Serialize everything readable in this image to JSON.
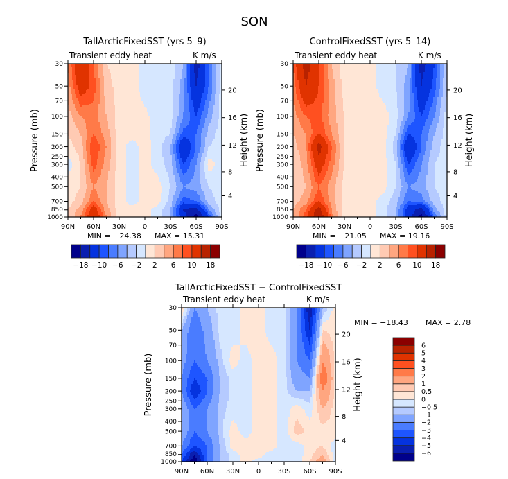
{
  "chart_data": {
    "type": "heatmap",
    "title": "SON",
    "colors": [
      "#00008b",
      "#0a1fb0",
      "#0533df",
      "#1e55ff",
      "#4a7cff",
      "#7fa4ff",
      "#b5caff",
      "#d6e7ff",
      "#ffe6d6",
      "#ffcab3",
      "#ffa680",
      "#ff7a48",
      "#ff5020",
      "#e03300",
      "#b82200",
      "#8b0000"
    ],
    "latitudes": [
      90,
      75,
      60,
      45,
      30,
      15,
      0,
      -15,
      -30,
      -45,
      -60,
      -75,
      -90
    ],
    "pressure_levels": [
      30,
      50,
      100,
      150,
      200,
      300,
      500,
      700,
      850,
      1000
    ],
    "x_ticks": [
      {
        "value": 90,
        "label": "90N"
      },
      {
        "value": 60,
        "label": "60N"
      },
      {
        "value": 30,
        "label": "30N"
      },
      {
        "value": 0,
        "label": "0"
      },
      {
        "value": -30,
        "label": "30S"
      },
      {
        "value": -60,
        "label": "60S"
      },
      {
        "value": -90,
        "label": "90S"
      }
    ],
    "p_ticks": [
      30,
      50,
      70,
      100,
      150,
      200,
      250,
      300,
      400,
      500,
      700,
      850,
      1000
    ],
    "p_tick_labels": [
      "30",
      "50",
      "70",
      "100",
      "150",
      "200",
      "250",
      "300",
      "400",
      "500",
      "700",
      "850",
      "1000"
    ],
    "z_ticks": [
      4,
      8,
      12,
      16,
      20
    ],
    "z_tick_labels": [
      "4",
      "8",
      "12",
      "16",
      "20"
    ],
    "ylabel": "Pressure (mb)",
    "ylabel_right": "Height (km)",
    "panels": [
      {
        "title": "TallArcticFixedSST (yrs 5–9)",
        "left_string": "Transient eddy heat",
        "right_string": "K m/s",
        "min_label": "MIN = −24.38",
        "max_label": "MAX =  15.31",
        "levels": [
          -18,
          -14,
          -10,
          -8,
          -6,
          -4,
          -2,
          0,
          2,
          4,
          6,
          8,
          10,
          14,
          18
        ],
        "colorbar_labels": [
          "−18",
          "−10",
          "−6",
          "−2",
          "2",
          "6",
          "10",
          "18"
        ],
        "colorbar_label_levels": [
          1,
          3,
          5,
          7,
          9,
          11,
          13,
          15
        ],
        "values": [
          [
            6,
            14,
            8,
            2,
            1,
            1,
            -1,
            -1,
            -1,
            -4,
            -16,
            -8,
            -1
          ],
          [
            5,
            12,
            9,
            3,
            1,
            1,
            -1,
            -1,
            -1,
            -5,
            -14,
            -8,
            -1
          ],
          [
            3,
            6,
            7,
            4,
            1,
            1,
            0.5,
            -1,
            -1,
            -6,
            -10,
            -5,
            -1
          ],
          [
            2,
            4,
            8,
            5,
            1,
            1,
            0.5,
            -1,
            -2,
            -9,
            -8,
            -3,
            -1
          ],
          [
            1,
            3,
            10,
            6,
            1,
            -1,
            1,
            -1,
            -4,
            -14,
            -8,
            -2,
            -1
          ],
          [
            -1,
            2,
            9,
            5,
            1,
            -1,
            1,
            -1,
            -3,
            -10,
            -6,
            1,
            -1
          ],
          [
            1,
            2,
            6,
            4,
            1,
            -1,
            1,
            1,
            -2,
            -6,
            -5,
            -2,
            -1
          ],
          [
            1,
            3,
            8,
            4,
            1,
            -1,
            1,
            1,
            -3,
            -9,
            -8,
            -3,
            -1
          ],
          [
            2,
            5,
            12,
            5,
            1,
            1,
            1,
            -1,
            -4,
            -14,
            -16,
            -6,
            -1
          ],
          [
            2,
            6,
            14,
            6,
            1,
            1,
            1,
            -1,
            -4,
            -12,
            -20,
            -10,
            -1
          ]
        ]
      },
      {
        "title": "ControlFixedSST (yrs 5–14)",
        "left_string": "Transient eddy heat",
        "right_string": "K m/s",
        "min_label": "MIN = −21.05",
        "max_label": "MAX =  19.16",
        "levels": [
          -18,
          -14,
          -10,
          -8,
          -6,
          -4,
          -2,
          0,
          2,
          4,
          6,
          8,
          10,
          14,
          18
        ],
        "colorbar_labels": [
          "−18",
          "−10",
          "−6",
          "−2",
          "2",
          "6",
          "10",
          "18"
        ],
        "colorbar_label_levels": [
          1,
          3,
          5,
          7,
          9,
          11,
          13,
          15
        ],
        "values": [
          [
            8,
            16,
            10,
            4,
            1,
            1,
            1,
            -1,
            -2,
            -4,
            -16,
            -10,
            -2
          ],
          [
            7,
            14,
            10,
            5,
            1,
            1,
            1,
            -1,
            -2,
            -5,
            -14,
            -9,
            -2
          ],
          [
            5,
            8,
            9,
            5,
            2,
            1,
            1,
            1,
            -1,
            -6,
            -10,
            -6,
            -1
          ],
          [
            4,
            6,
            10,
            6,
            2,
            1,
            1,
            1,
            -2,
            -10,
            -8,
            -4,
            -1
          ],
          [
            3,
            6,
            16,
            8,
            2,
            1,
            1,
            1,
            -3,
            -14,
            -8,
            -3,
            -1
          ],
          [
            2,
            5,
            12,
            7,
            2,
            1,
            1,
            1,
            -2,
            -10,
            -6,
            -2,
            -1
          ],
          [
            2,
            4,
            8,
            5,
            1,
            1,
            1,
            1,
            -2,
            -6,
            -5,
            -2,
            -1
          ],
          [
            3,
            5,
            10,
            5,
            1,
            1,
            1,
            -1,
            -3,
            -8,
            -7,
            -3,
            -1
          ],
          [
            4,
            8,
            16,
            6,
            1,
            1,
            1,
            -1,
            -4,
            -12,
            -16,
            -5,
            -1
          ],
          [
            4,
            9,
            18,
            7,
            1,
            1,
            1,
            -1,
            -4,
            -12,
            -20,
            -8,
            -1
          ]
        ]
      },
      {
        "title": "TallArcticFixedSST − ControlFixedSST",
        "left_string": "Transient eddy heat",
        "right_string": "K m/s",
        "min_label": "MIN = −18.43",
        "max_label": "MAX =    2.78",
        "levels": [
          -6,
          -5,
          -4,
          -3,
          -2,
          -1,
          -0.5,
          0,
          0.5,
          1,
          2,
          3,
          4,
          5,
          6
        ],
        "colorbar_labels": [
          "−6",
          "−5",
          "−4",
          "−3",
          "−2",
          "−1",
          "−0.5",
          "0",
          "0.5",
          "1",
          "2",
          "3",
          "4",
          "5",
          "6"
        ],
        "colorbar_label_levels": [
          1,
          2,
          3,
          4,
          5,
          6,
          7,
          8,
          9,
          10,
          11,
          12,
          13,
          14,
          15
        ],
        "values": [
          [
            0.8,
            -2,
            -1,
            -0.3,
            -0.3,
            0.3,
            0.3,
            -0.3,
            -0.3,
            -2,
            -6,
            -1,
            0.3
          ],
          [
            -1,
            -3,
            -1.5,
            -0.3,
            -0.3,
            0.3,
            0.3,
            -0.3,
            -0.3,
            -2,
            -5,
            0.5,
            0.3
          ],
          [
            -1.5,
            -3,
            -2,
            -0.7,
            0.3,
            -0.3,
            0.3,
            0.3,
            -0.3,
            -2,
            -3,
            2,
            0.3
          ],
          [
            -2,
            -4,
            -3,
            -1,
            -0.3,
            -0.3,
            0.3,
            0.3,
            -0.3,
            -1.5,
            -2,
            3,
            0.3
          ],
          [
            -2,
            -5,
            -3,
            -1,
            -0.3,
            -0.3,
            0.3,
            0.3,
            -0.3,
            -1,
            -1,
            2,
            0.3
          ],
          [
            -1,
            -3,
            -2,
            -0.7,
            -0.3,
            -0.3,
            0.3,
            0.3,
            -0.3,
            0.3,
            -0.3,
            1,
            0.3
          ],
          [
            -1,
            -3,
            -2,
            -0.7,
            0.3,
            -0.3,
            0.3,
            0.3,
            -0.3,
            0.8,
            0.3,
            0.3,
            0.3
          ],
          [
            -2,
            -4,
            -3,
            -1,
            0.3,
            0.3,
            0.3,
            0.3,
            -0.3,
            -0.3,
            0.3,
            0.5,
            -0.3
          ],
          [
            -3,
            -6,
            -3,
            -1,
            -0.3,
            0.3,
            0.3,
            -0.3,
            -0.3,
            -0.3,
            0.3,
            1,
            -0.3
          ],
          [
            -4,
            -7,
            -3,
            -1,
            -0.3,
            0.3,
            -0.3,
            -0.3,
            -0.3,
            -0.3,
            0.5,
            1.5,
            -0.3
          ]
        ]
      }
    ]
  }
}
